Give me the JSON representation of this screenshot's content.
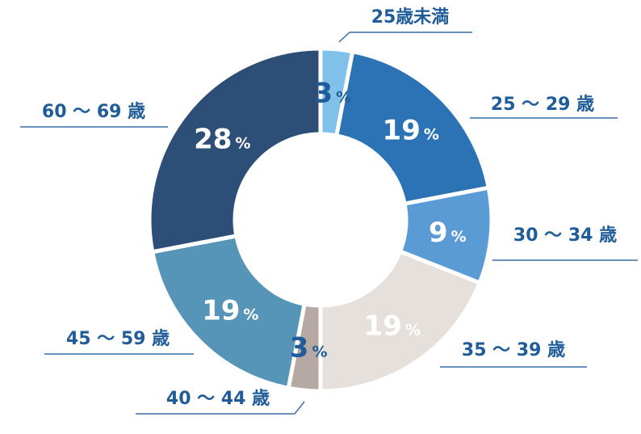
{
  "chart_data": {
    "type": "pie",
    "variant": "donut",
    "title": "",
    "unit": "%",
    "slices": [
      {
        "label": "25歳未満",
        "value": 3,
        "color": "#7fc1ea",
        "text_color": "#1f5c99"
      },
      {
        "label": "25 ～ 29 歳",
        "value": 19,
        "color": "#2c73b5",
        "text_color": "#ffffff"
      },
      {
        "label": "30 ～ 34 歳",
        "value": 9,
        "color": "#5b9bd5",
        "text_color": "#ffffff"
      },
      {
        "label": "35 ～ 39 歳",
        "value": 19,
        "color": "#e6e0dc",
        "text_color": "#ffffff"
      },
      {
        "label": "40 ～ 44 歳",
        "value": 3,
        "color": "#b6a9a4",
        "text_color": "#1f5c99"
      },
      {
        "label": "45 ～ 59 歳",
        "value": 19,
        "color": "#5795b8",
        "text_color": "#ffffff"
      },
      {
        "label": "60 ～ 69 歳",
        "value": 28,
        "color": "#2d4e77",
        "text_color": "#ffffff"
      }
    ]
  }
}
